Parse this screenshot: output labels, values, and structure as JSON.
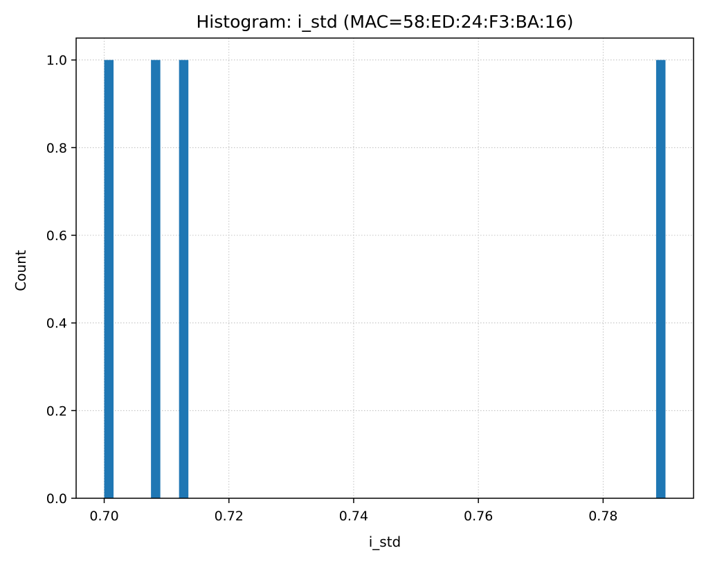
{
  "chart_data": {
    "type": "bar",
    "title": "Histogram: i_std (MAC=58:ED:24:F3:BA:16)",
    "xlabel": "i_std",
    "ylabel": "Count",
    "xlim": [
      0.6955,
      0.7945
    ],
    "ylim": [
      0,
      1.05
    ],
    "x_ticks": [
      0.7,
      0.72,
      0.74,
      0.76,
      0.78
    ],
    "x_tick_labels": [
      "0.70",
      "0.72",
      "0.74",
      "0.76",
      "0.78"
    ],
    "y_ticks": [
      0.0,
      0.2,
      0.4,
      0.6,
      0.8,
      1.0
    ],
    "y_tick_labels": [
      "0.0",
      "0.2",
      "0.4",
      "0.6",
      "0.8",
      "1.0"
    ],
    "grid": true,
    "bar_color": "#1f77b4",
    "bins": [
      {
        "x_start": 0.7,
        "x_end": 0.7015,
        "count": 1
      },
      {
        "x_start": 0.7075,
        "x_end": 0.709,
        "count": 1
      },
      {
        "x_start": 0.712,
        "x_end": 0.7135,
        "count": 1
      },
      {
        "x_start": 0.7885,
        "x_end": 0.79,
        "count": 1
      }
    ]
  }
}
